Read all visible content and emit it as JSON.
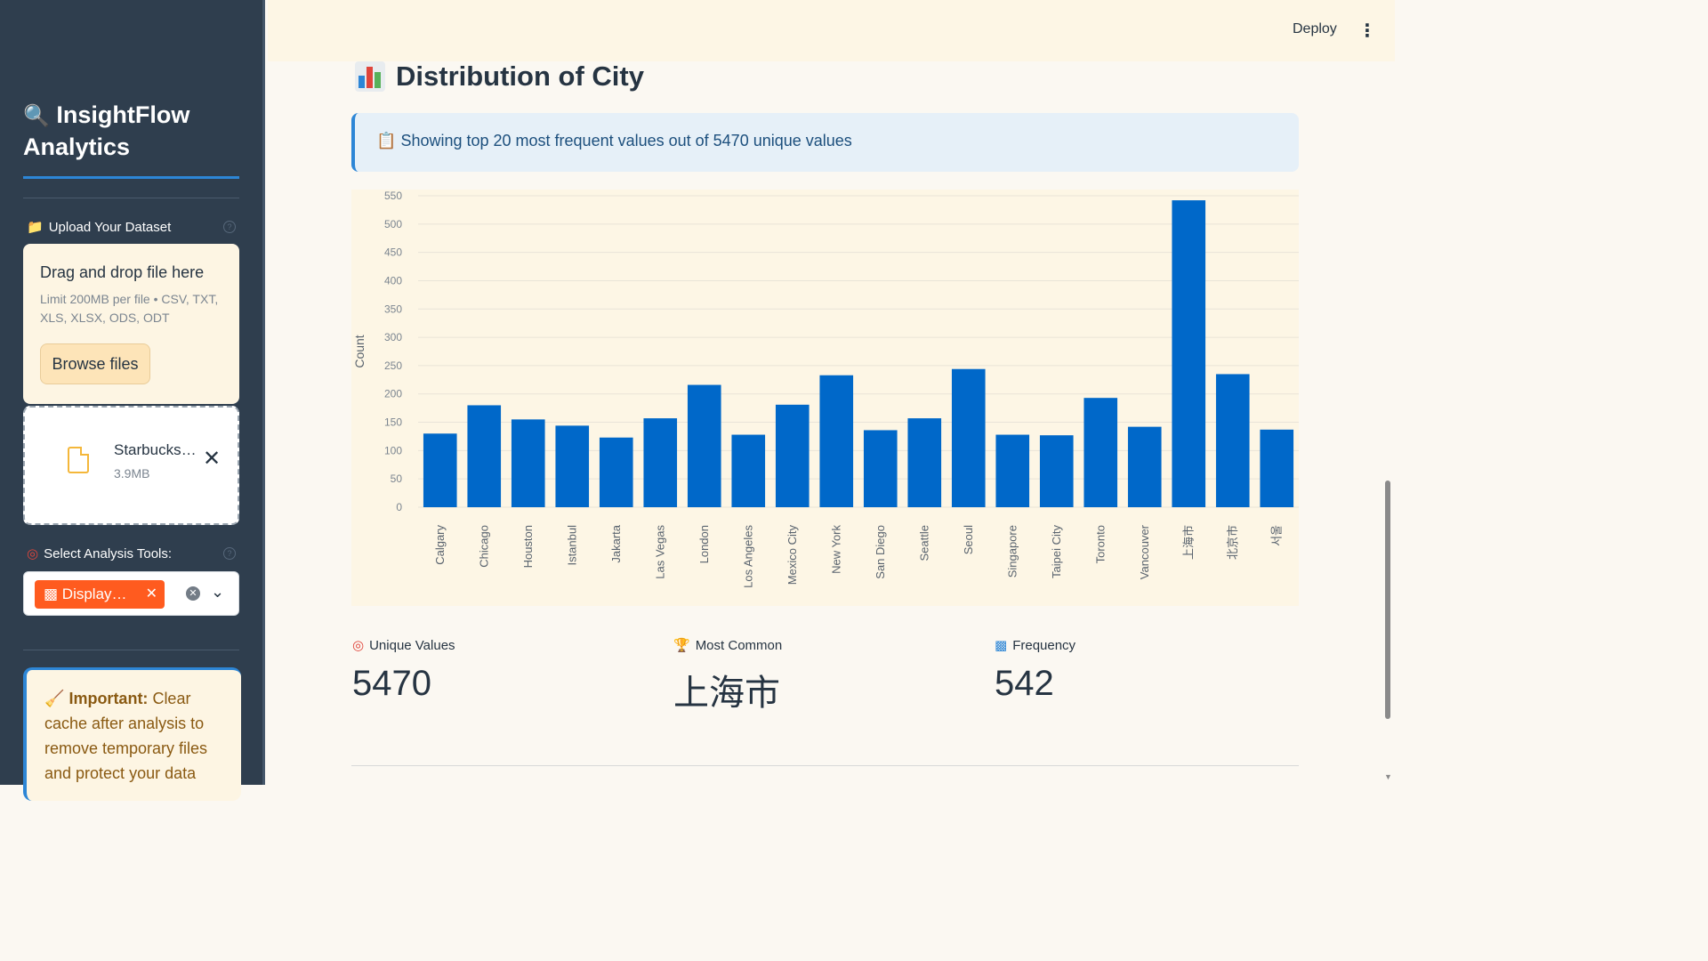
{
  "sidebar": {
    "brand_line1": "InsightFlow",
    "brand_line2": "Analytics",
    "upload_label": "Upload Your Dataset",
    "dropzone": {
      "title": "Drag and drop file here",
      "subtitle": "Limit 200MB per file • CSV, TXT, XLS, XLSX, ODS, ODT",
      "browse_label": "Browse files"
    },
    "file": {
      "name": "Starbucks…",
      "size": "3.9MB"
    },
    "tools_label": "Select Analysis Tools:",
    "selected_chip": "Display…",
    "notice_strong": "Important:",
    "notice_text": " Clear cache after analysis to remove temporary files and protect your data"
  },
  "header": {
    "deploy_label": "Deploy"
  },
  "main": {
    "title": "Distribution of City",
    "info_text": "Showing top 20 most frequent values out of 5470 unique values",
    "metrics": [
      {
        "label": "Unique Values",
        "value": "5470"
      },
      {
        "label": "Most Common",
        "value": "上海市"
      },
      {
        "label": "Frequency",
        "value": "542"
      }
    ]
  },
  "colors": {
    "bar": "#0068c9",
    "accent": "#2d86d6",
    "chip": "#ff5b1f",
    "sidebar": "#2f3e4e"
  },
  "chart_data": {
    "type": "bar",
    "categories": [
      "Calgary",
      "Chicago",
      "Houston",
      "Istanbul",
      "Jakarta",
      "Las Vegas",
      "London",
      "Los Angeles",
      "Mexico City",
      "New York",
      "San Diego",
      "Seattle",
      "Seoul",
      "Singapore",
      "Taipei City",
      "Toronto",
      "Vancouver",
      "上海市",
      "北京市",
      "서울"
    ],
    "values": [
      130,
      180,
      155,
      144,
      123,
      157,
      216,
      128,
      181,
      233,
      136,
      157,
      244,
      128,
      127,
      193,
      142,
      542,
      235,
      137
    ],
    "xlabel": "",
    "ylabel": "Count",
    "yticks": [
      0,
      50,
      100,
      150,
      200,
      250,
      300,
      350,
      400,
      450,
      500,
      550
    ],
    "ylim": [
      0,
      550
    ],
    "grid": true
  }
}
